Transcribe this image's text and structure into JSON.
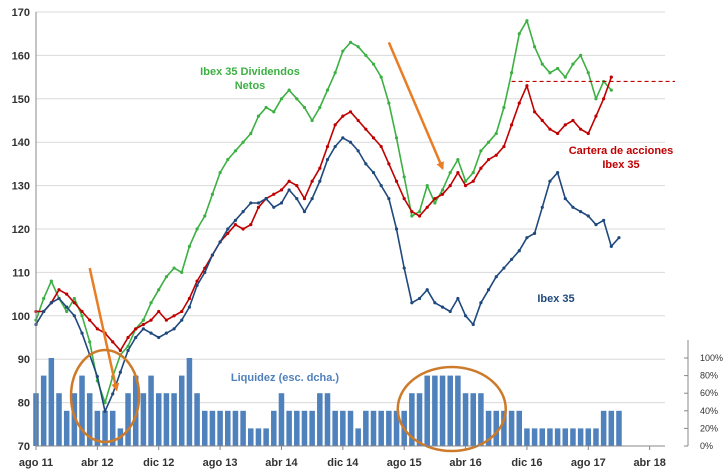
{
  "chart_data": {
    "type": "line",
    "title": "",
    "xlabel": "",
    "ylabel": "",
    "ylim": [
      70,
      170
    ],
    "y2lim": [
      0,
      100
    ],
    "y2_ticks": [
      "0%",
      "20%",
      "40%",
      "60%",
      "80%",
      "100%"
    ],
    "y_ticks": [
      "70",
      "80",
      "90",
      "100",
      "110",
      "120",
      "130",
      "140",
      "150",
      "160",
      "170"
    ],
    "x_ticks": [
      "ago 11",
      "abr 12",
      "dic 12",
      "ago 13",
      "abr 14",
      "dic 14",
      "ago 15",
      "abr 16",
      "dic 16",
      "ago 17",
      "abr 18"
    ],
    "x_start": 0,
    "x_end": 82,
    "series": [
      {
        "name": "Ibex 35 Dividendos Netos",
        "color": "#3cb043",
        "points": [
          [
            0,
            99
          ],
          [
            1,
            104
          ],
          [
            2,
            108
          ],
          [
            3,
            104
          ],
          [
            4,
            101
          ],
          [
            5,
            104
          ],
          [
            6,
            100
          ],
          [
            7,
            94
          ],
          [
            8,
            85
          ],
          [
            9,
            80
          ],
          [
            10,
            86
          ],
          [
            11,
            91
          ],
          [
            12,
            93
          ],
          [
            13,
            97
          ],
          [
            14,
            99
          ],
          [
            15,
            103
          ],
          [
            16,
            106
          ],
          [
            17,
            109
          ],
          [
            18,
            111
          ],
          [
            19,
            110
          ],
          [
            20,
            116
          ],
          [
            21,
            120
          ],
          [
            22,
            123
          ],
          [
            23,
            128
          ],
          [
            24,
            133
          ],
          [
            25,
            136
          ],
          [
            26,
            138
          ],
          [
            27,
            140
          ],
          [
            28,
            142
          ],
          [
            29,
            146
          ],
          [
            30,
            148
          ],
          [
            31,
            147
          ],
          [
            32,
            150
          ],
          [
            33,
            152
          ],
          [
            34,
            150
          ],
          [
            35,
            148
          ],
          [
            36,
            145
          ],
          [
            37,
            148
          ],
          [
            38,
            152
          ],
          [
            39,
            156
          ],
          [
            40,
            161
          ],
          [
            41,
            163
          ],
          [
            42,
            162
          ],
          [
            43,
            160
          ],
          [
            44,
            158
          ],
          [
            45,
            155
          ],
          [
            46,
            149
          ],
          [
            47,
            141
          ],
          [
            48,
            132
          ],
          [
            49,
            123
          ],
          [
            50,
            124
          ],
          [
            51,
            130
          ],
          [
            52,
            126
          ],
          [
            53,
            129
          ],
          [
            54,
            133
          ],
          [
            55,
            136
          ],
          [
            56,
            131
          ],
          [
            57,
            133
          ],
          [
            58,
            138
          ],
          [
            59,
            140
          ],
          [
            60,
            142
          ],
          [
            61,
            148
          ],
          [
            62,
            156
          ],
          [
            63,
            165
          ],
          [
            64,
            168
          ],
          [
            65,
            162
          ],
          [
            66,
            158
          ],
          [
            67,
            156
          ],
          [
            68,
            157
          ],
          [
            69,
            155
          ],
          [
            70,
            158
          ],
          [
            71,
            160
          ],
          [
            72,
            156
          ],
          [
            73,
            150
          ],
          [
            74,
            154
          ],
          [
            75,
            152
          ]
        ]
      },
      {
        "name": "Cartera de acciones Ibex 35",
        "color": "#c00000",
        "points": [
          [
            0,
            101
          ],
          [
            1,
            101
          ],
          [
            2,
            103
          ],
          [
            3,
            106
          ],
          [
            4,
            105
          ],
          [
            5,
            103
          ],
          [
            6,
            101
          ],
          [
            7,
            99
          ],
          [
            8,
            97
          ],
          [
            9,
            96
          ],
          [
            10,
            94
          ],
          [
            11,
            92
          ],
          [
            12,
            95
          ],
          [
            13,
            97
          ],
          [
            14,
            98
          ],
          [
            15,
            99
          ],
          [
            16,
            101
          ],
          [
            17,
            99
          ],
          [
            18,
            100
          ],
          [
            19,
            101
          ],
          [
            20,
            104
          ],
          [
            21,
            108
          ],
          [
            22,
            111
          ],
          [
            23,
            114
          ],
          [
            24,
            117
          ],
          [
            25,
            119
          ],
          [
            26,
            121
          ],
          [
            27,
            120
          ],
          [
            28,
            121
          ],
          [
            29,
            125
          ],
          [
            30,
            127
          ],
          [
            31,
            128
          ],
          [
            32,
            129
          ],
          [
            33,
            131
          ],
          [
            34,
            130
          ],
          [
            35,
            127
          ],
          [
            36,
            131
          ],
          [
            37,
            134
          ],
          [
            38,
            139
          ],
          [
            39,
            144
          ],
          [
            40,
            146
          ],
          [
            41,
            147
          ],
          [
            42,
            145
          ],
          [
            43,
            143
          ],
          [
            44,
            141
          ],
          [
            45,
            139
          ],
          [
            46,
            135
          ],
          [
            47,
            131
          ],
          [
            48,
            127
          ],
          [
            49,
            124
          ],
          [
            50,
            123
          ],
          [
            51,
            125
          ],
          [
            52,
            127
          ],
          [
            53,
            128
          ],
          [
            54,
            130
          ],
          [
            55,
            133
          ],
          [
            56,
            130
          ],
          [
            57,
            131
          ],
          [
            58,
            134
          ],
          [
            59,
            136
          ],
          [
            60,
            137
          ],
          [
            61,
            139
          ],
          [
            62,
            144
          ],
          [
            63,
            149
          ],
          [
            64,
            153
          ],
          [
            65,
            147
          ],
          [
            66,
            145
          ],
          [
            67,
            143
          ],
          [
            68,
            142
          ],
          [
            69,
            144
          ],
          [
            70,
            145
          ],
          [
            71,
            143
          ],
          [
            72,
            142
          ],
          [
            73,
            146
          ],
          [
            74,
            150
          ],
          [
            75,
            155
          ]
        ]
      },
      {
        "name": "Ibex 35",
        "color": "#1f497d",
        "points": [
          [
            0,
            98
          ],
          [
            1,
            101
          ],
          [
            2,
            103
          ],
          [
            3,
            104
          ],
          [
            4,
            102
          ],
          [
            5,
            100
          ],
          [
            6,
            96
          ],
          [
            7,
            91
          ],
          [
            8,
            86
          ],
          [
            9,
            78
          ],
          [
            10,
            82
          ],
          [
            11,
            87
          ],
          [
            12,
            92
          ],
          [
            13,
            95
          ],
          [
            14,
            97
          ],
          [
            15,
            96
          ],
          [
            16,
            95
          ],
          [
            17,
            96
          ],
          [
            18,
            97
          ],
          [
            19,
            99
          ],
          [
            20,
            102
          ],
          [
            21,
            107
          ],
          [
            22,
            110
          ],
          [
            23,
            114
          ],
          [
            24,
            117
          ],
          [
            25,
            120
          ],
          [
            26,
            122
          ],
          [
            27,
            124
          ],
          [
            28,
            126
          ],
          [
            29,
            126
          ],
          [
            30,
            127
          ],
          [
            31,
            125
          ],
          [
            32,
            126
          ],
          [
            33,
            129
          ],
          [
            34,
            127
          ],
          [
            35,
            124
          ],
          [
            36,
            127
          ],
          [
            37,
            131
          ],
          [
            38,
            136
          ],
          [
            39,
            139
          ],
          [
            40,
            141
          ],
          [
            41,
            140
          ],
          [
            42,
            138
          ],
          [
            43,
            135
          ],
          [
            44,
            133
          ],
          [
            45,
            130
          ],
          [
            46,
            127
          ],
          [
            47,
            120
          ],
          [
            48,
            111
          ],
          [
            49,
            103
          ],
          [
            50,
            104
          ],
          [
            51,
            106
          ],
          [
            52,
            103
          ],
          [
            53,
            102
          ],
          [
            54,
            101
          ],
          [
            55,
            104
          ],
          [
            56,
            100
          ],
          [
            57,
            98
          ],
          [
            58,
            103
          ],
          [
            59,
            106
          ],
          [
            60,
            109
          ],
          [
            61,
            111
          ],
          [
            62,
            113
          ],
          [
            63,
            115
          ],
          [
            64,
            118
          ],
          [
            65,
            119
          ],
          [
            66,
            125
          ],
          [
            67,
            131
          ],
          [
            68,
            133
          ],
          [
            69,
            127
          ],
          [
            70,
            125
          ],
          [
            71,
            124
          ],
          [
            72,
            123
          ],
          [
            73,
            121
          ],
          [
            74,
            122
          ],
          [
            75,
            116
          ],
          [
            76,
            118
          ]
        ]
      },
      {
        "name": "Liquidez (esc. dcha.)",
        "type": "bar",
        "axis": "right",
        "color": "#4f81bd",
        "x": [
          0,
          1,
          2,
          3,
          4,
          5,
          6,
          7,
          8,
          9,
          10,
          11,
          12,
          13,
          14,
          15,
          16,
          17,
          18,
          19,
          20,
          21,
          22,
          23,
          24,
          25,
          26,
          27,
          28,
          29,
          30,
          31,
          32,
          33,
          34,
          35,
          36,
          37,
          38,
          39,
          40,
          41,
          42,
          43,
          44,
          45,
          46,
          47,
          48,
          49,
          50,
          51,
          52,
          53,
          54,
          55,
          56,
          57,
          58,
          59,
          60,
          61,
          62,
          63,
          64,
          65,
          66,
          67,
          68,
          69,
          70,
          71,
          72,
          73,
          74,
          75,
          76
        ],
        "values": [
          60,
          80,
          100,
          60,
          40,
          60,
          80,
          60,
          40,
          40,
          40,
          20,
          60,
          80,
          60,
          80,
          60,
          60,
          60,
          80,
          100,
          60,
          40,
          40,
          40,
          40,
          40,
          40,
          20,
          20,
          20,
          40,
          60,
          40,
          40,
          40,
          40,
          60,
          60,
          40,
          40,
          40,
          20,
          40,
          40,
          40,
          40,
          40,
          40,
          60,
          60,
          80,
          80,
          80,
          80,
          80,
          60,
          60,
          60,
          40,
          40,
          40,
          40,
          40,
          20,
          20,
          20,
          20,
          20,
          20,
          20,
          20,
          20,
          20,
          40,
          40,
          40
        ]
      }
    ],
    "annotations": {
      "label_dividendos": "Ibex 35 Dividendos Netos",
      "label_cartera": "Cartera de acciones Ibex 35",
      "label_ibex": "Ibex 35",
      "label_liquidez": "Liquidez (esc. dcha.)",
      "reference_line_value": 154,
      "reference_line_color": "#c00000",
      "arrow_color": "#e97d25",
      "circle_color": "#cd7a2a"
    }
  }
}
